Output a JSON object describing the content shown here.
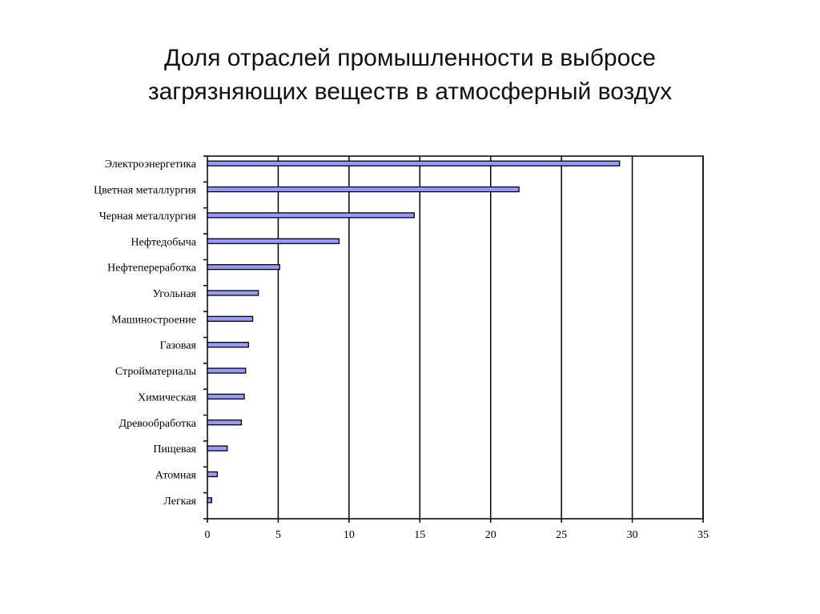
{
  "chart_data": {
    "type": "bar",
    "orientation": "horizontal",
    "title_lines": [
      "Доля отраслей промышленности в выбросе",
      "загрязняющих веществ в атмосферный воздух"
    ],
    "categories": [
      "Электроэнергетика",
      "Цветная металлургия",
      "Черная металлургия",
      "Нефтедобыча",
      "Нефтепереработка",
      "Угольная",
      "Машиностроение",
      "Газовая",
      "Стройматериалы",
      "Химическая",
      "Древообработка",
      "Пищевая",
      "Атомная",
      "Легкая"
    ],
    "values": [
      29.1,
      22.0,
      14.6,
      9.3,
      5.1,
      3.6,
      3.2,
      2.9,
      2.7,
      2.6,
      2.4,
      1.4,
      0.7,
      0.3
    ],
    "xlim": [
      0,
      35
    ],
    "xticks": [
      "0",
      "5",
      "10",
      "15",
      "20",
      "25",
      "30",
      "35"
    ],
    "xlabel": "",
    "ylabel": "",
    "grid": "vertical",
    "bar_color": "#9999ff",
    "legend": "none"
  }
}
